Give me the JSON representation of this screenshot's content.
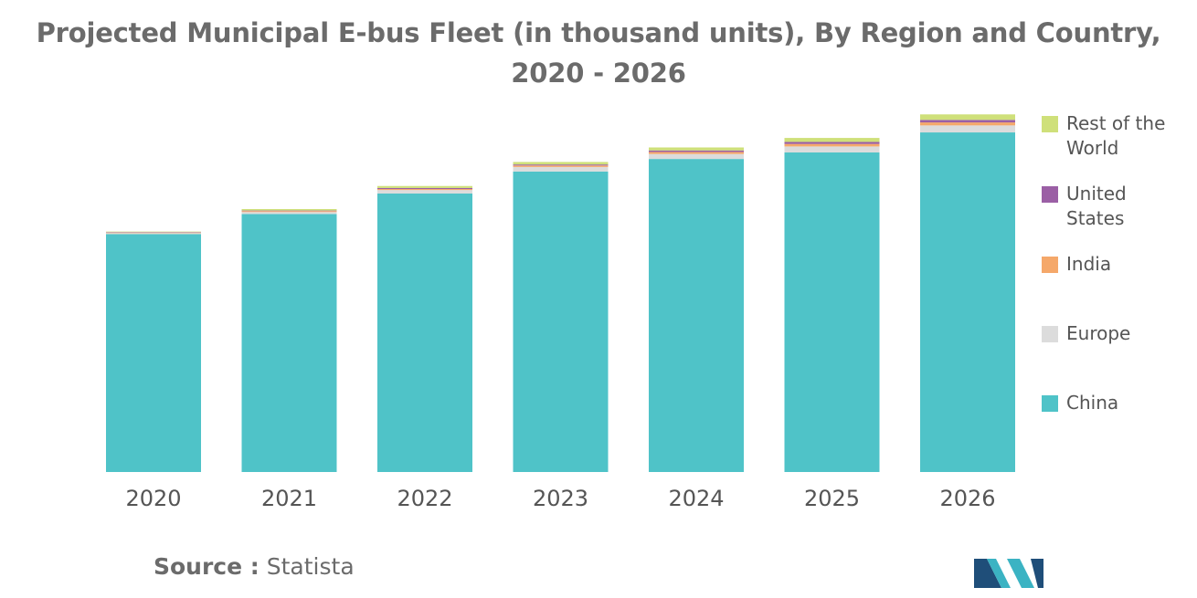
{
  "title": "Projected Municipal E-bus Fleet (in thousand units), By Region and Country, 2020 - 2026",
  "source": {
    "label": "Source :",
    "value": "Statista"
  },
  "colors": {
    "China": "#4fc3c8",
    "Europe": "#dcdcdc",
    "India": "#f5a86a",
    "United States": "#9b5fa5",
    "Rest of the World": "#cfe07a"
  },
  "chart_data": {
    "type": "bar",
    "stacked": true,
    "title": "Projected Municipal E-bus Fleet (in thousand units), By Region and Country, 2020 - 2026",
    "xlabel": "",
    "ylabel": "",
    "ylim": [
      0,
      720
    ],
    "grid": false,
    "legend_position": "right",
    "categories": [
      "2020",
      "2021",
      "2022",
      "2023",
      "2024",
      "2025",
      "2026"
    ],
    "series": [
      {
        "name": "China",
        "values": [
          475,
          515,
          556,
          600,
          625,
          638,
          678
        ]
      },
      {
        "name": "Europe",
        "values": [
          2,
          4,
          7,
          9,
          10,
          12,
          14
        ]
      },
      {
        "name": "India",
        "values": [
          1,
          2,
          2,
          3,
          4,
          5,
          6
        ]
      },
      {
        "name": "United States",
        "values": [
          1,
          1,
          2,
          2,
          3,
          4,
          5
        ]
      },
      {
        "name": "Rest of the World",
        "values": [
          1,
          3,
          4,
          5,
          6,
          8,
          11
        ]
      }
    ]
  },
  "legend": [
    {
      "name": "Rest of the World",
      "label": "Rest of the World"
    },
    {
      "name": "United States",
      "label": "United States"
    },
    {
      "name": "India",
      "label": "India"
    },
    {
      "name": "Europe",
      "label": "Europe"
    },
    {
      "name": "China",
      "label": "China"
    }
  ]
}
